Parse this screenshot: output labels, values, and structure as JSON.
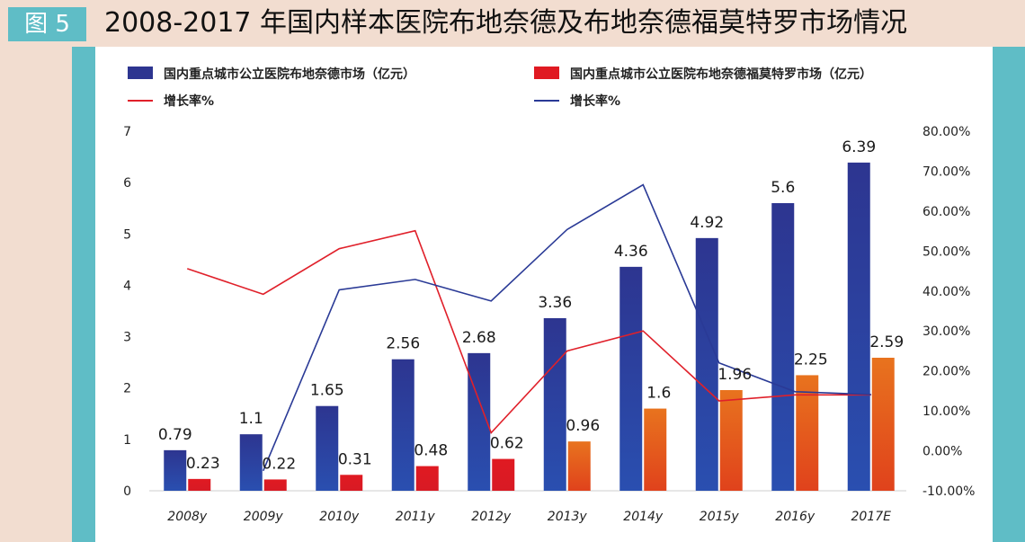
{
  "figure": {
    "tag": "图 5",
    "title": "2008-2017 年国内样本医院布地奈德及布地奈德福莫特罗市场情况"
  },
  "colors": {
    "background": "#f2ddd0",
    "accent_strip": "#5fbdc6",
    "bar_series_1": "#2d3590",
    "bar_series_2_early": "#e01a22",
    "bar_series_2_late": "#e8731e",
    "growth_line_1": "#e0202a",
    "growth_line_2": "#2a3a96"
  },
  "chart_data": {
    "type": "bar",
    "categories": [
      "2008y",
      "2009y",
      "2010y",
      "2011y",
      "2012y",
      "2013y",
      "2014y",
      "2015y",
      "2016y",
      "2017E"
    ],
    "series": [
      {
        "name": "国内重点城市公立医院布地奈德市场（亿元）",
        "kind": "bar",
        "axis": "left",
        "values": [
          0.79,
          1.1,
          1.65,
          2.56,
          2.68,
          3.36,
          4.36,
          4.92,
          5.6,
          6.39
        ],
        "labels": [
          "0.79",
          "1.1",
          "1.65",
          "2.56",
          "2.68",
          "3.36",
          "4.36",
          "4.92",
          "5.6",
          "6.39"
        ]
      },
      {
        "name": "国内重点城市公立医院布地奈德福莫特罗市场（亿元）",
        "kind": "bar",
        "axis": "left",
        "values": [
          0.23,
          0.22,
          0.31,
          0.48,
          0.62,
          0.96,
          1.6,
          1.96,
          2.25,
          2.59
        ],
        "labels": [
          "0.23",
          "0.22",
          "0.31",
          "0.48",
          "0.62",
          "0.96",
          "1.6",
          "1.96",
          "2.25",
          "2.59"
        ]
      },
      {
        "name": "增长率%",
        "kind": "line",
        "axis": "right",
        "color_key": "growth_line_1",
        "values": [
          45.6,
          39.2,
          50.6,
          55.1,
          4.5,
          25.0,
          30.0,
          12.5,
          14.0,
          14.0
        ]
      },
      {
        "name": "增长率%",
        "kind": "line",
        "axis": "right",
        "color_key": "growth_line_2",
        "values": [
          null,
          -5.0,
          40.3,
          42.9,
          37.5,
          55.4,
          66.6,
          22.0,
          14.8,
          14.1
        ]
      }
    ],
    "y_left": {
      "min": 0,
      "max": 7,
      "ticks": [
        "0",
        "1",
        "2",
        "3",
        "4",
        "5",
        "6",
        "7"
      ]
    },
    "y_right": {
      "min": -10,
      "max": 80,
      "ticks": [
        "-10.00%",
        "0.00%",
        "10.00%",
        "20.00%",
        "30.00%",
        "40.00%",
        "50.00%",
        "60.00%",
        "70.00%",
        "80.00%"
      ]
    },
    "grid": false,
    "legend_position": "top"
  }
}
